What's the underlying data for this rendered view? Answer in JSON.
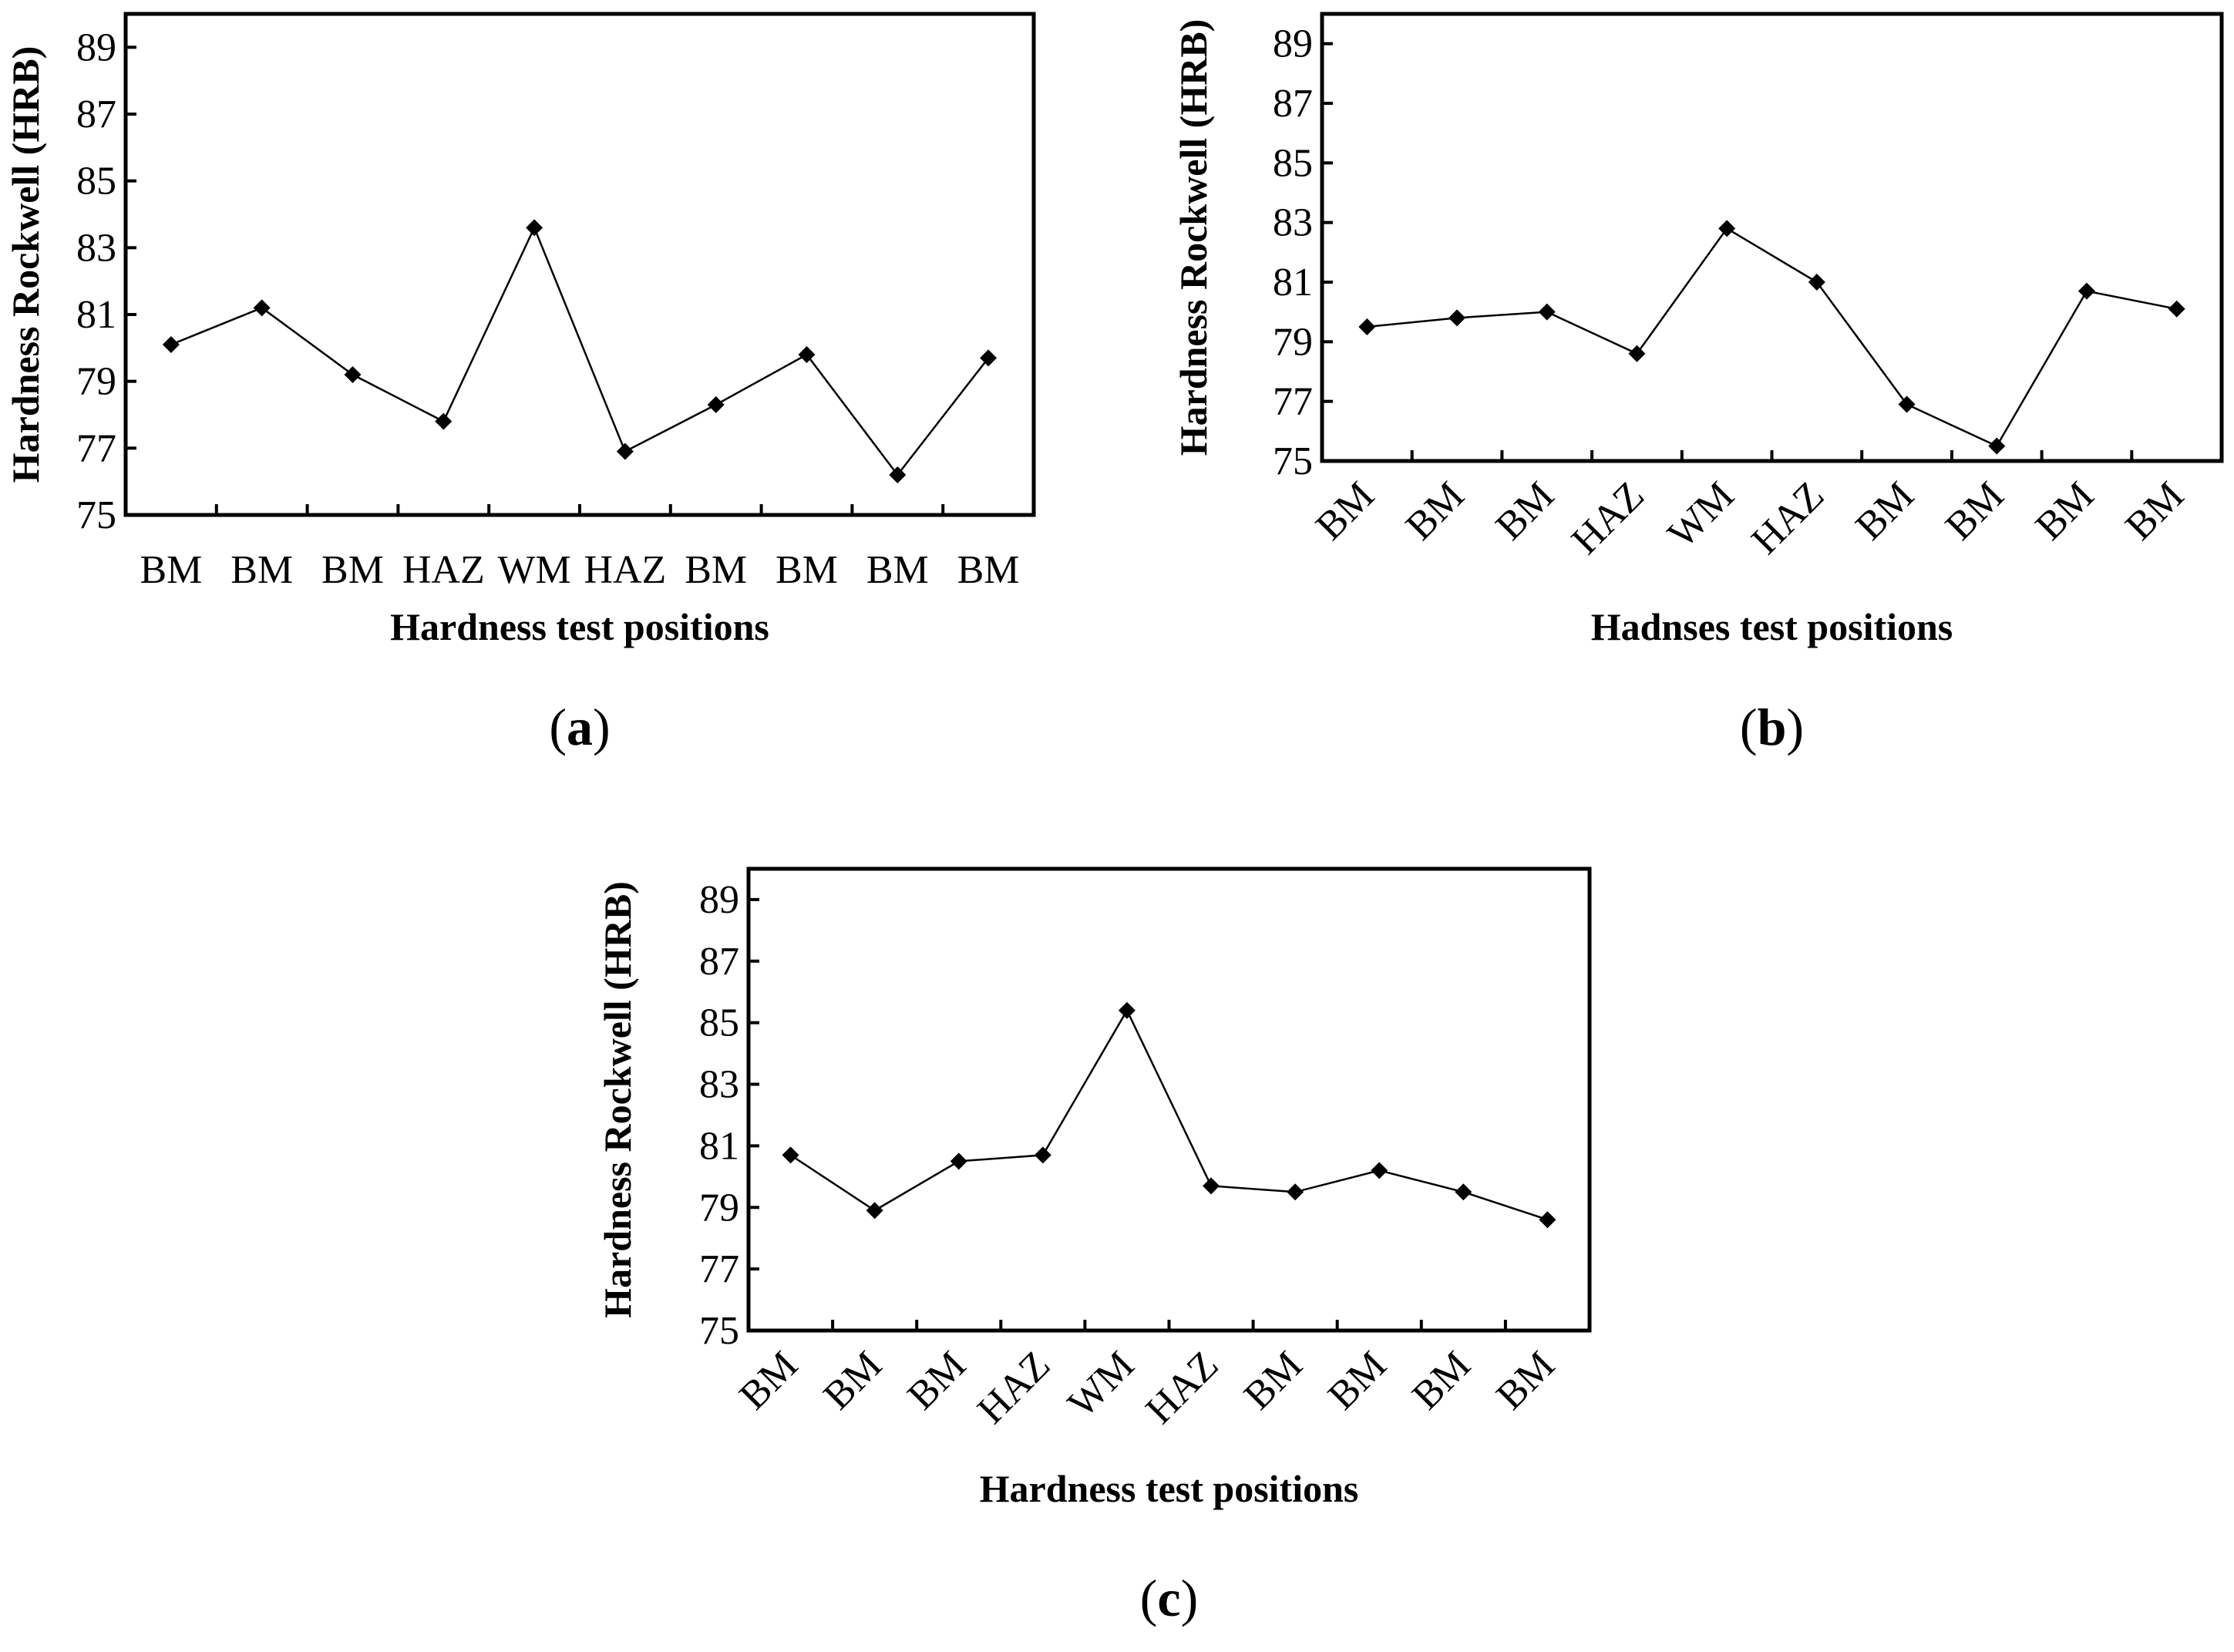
{
  "chart_data": [
    {
      "type": "line",
      "panel": "(a)",
      "panel_letter": "a",
      "xlabel": "Hardness test positions",
      "ylabel": "Hardness Rockwell (HRB)",
      "ylim": [
        75,
        90
      ],
      "yticks": [
        75,
        77,
        79,
        81,
        83,
        85,
        87,
        89
      ],
      "categories": [
        "BM",
        "BM",
        "BM",
        "HAZ",
        "WM",
        "HAZ",
        "BM",
        "BM",
        "BM",
        "BM"
      ],
      "values": [
        80.1,
        81.2,
        79.2,
        77.8,
        83.6,
        76.9,
        78.3,
        79.8,
        76.2,
        79.7
      ],
      "marker": "diamond",
      "rotate_labels": false
    },
    {
      "type": "line",
      "panel": "(b)",
      "panel_letter": "b",
      "xlabel": "Hadnses test positions",
      "ylabel": "Hardness Rockwell (HRB)",
      "ylim": [
        75,
        90
      ],
      "yticks": [
        75,
        77,
        79,
        81,
        83,
        85,
        87,
        89
      ],
      "categories": [
        "BM",
        "BM",
        "BM",
        "HAZ",
        "WM",
        "HAZ",
        "BM",
        "BM",
        "BM",
        "BM"
      ],
      "values": [
        79.5,
        79.8,
        80.0,
        78.6,
        82.8,
        81.0,
        76.9,
        75.5,
        80.7,
        80.1
      ],
      "marker": "diamond",
      "rotate_labels": true
    },
    {
      "type": "line",
      "panel": "(c)",
      "panel_letter": "c",
      "xlabel": "Hardness test positions",
      "ylabel": "Hardness Rockwell (HRB)",
      "ylim": [
        75,
        90
      ],
      "yticks": [
        75,
        77,
        79,
        81,
        83,
        85,
        87,
        89
      ],
      "categories": [
        "BM",
        "BM",
        "BM",
        "HAZ",
        "WM",
        "HAZ",
        "BM",
        "BM",
        "BM",
        "BM"
      ],
      "values": [
        80.7,
        78.9,
        80.5,
        80.7,
        85.4,
        79.7,
        79.5,
        80.2,
        79.5,
        78.6
      ],
      "marker": "diamond",
      "rotate_labels": true
    }
  ]
}
